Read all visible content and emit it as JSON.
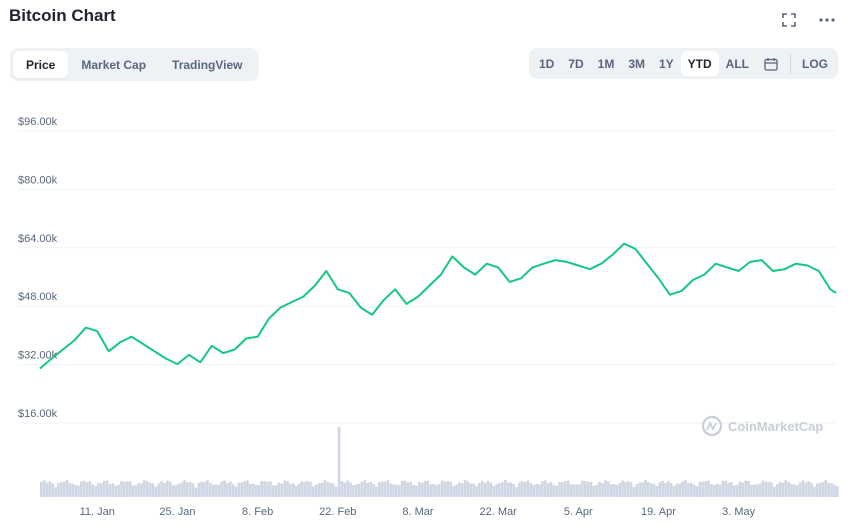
{
  "header": {
    "title": "Bitcoin Chart"
  },
  "tabs": [
    {
      "label": "Price",
      "active": true
    },
    {
      "label": "Market Cap",
      "active": false
    },
    {
      "label": "TradingView",
      "active": false
    }
  ],
  "ranges": [
    {
      "label": "1D",
      "active": false
    },
    {
      "label": "7D",
      "active": false
    },
    {
      "label": "1M",
      "active": false
    },
    {
      "label": "3M",
      "active": false
    },
    {
      "label": "1Y",
      "active": false
    },
    {
      "label": "YTD",
      "active": true
    },
    {
      "label": "ALL",
      "active": false
    }
  ],
  "log_label": "LOG",
  "icons": {
    "fullscreen": "fullscreen-icon",
    "more": "more-icon",
    "calendar": "calendar-icon"
  },
  "watermark": "CoinMarketCap",
  "colors": {
    "line": "#16c784",
    "volume": "#cfd6e4",
    "grid": "#eff2f5",
    "axis_text": "#58667e"
  },
  "chart_data": {
    "type": "line",
    "title": "Bitcoin Chart",
    "xlabel": "",
    "ylabel": "",
    "y_ticks": [
      "$96.00k",
      "$80.00k",
      "$64.00k",
      "$48.00k",
      "$32.00k",
      "$16.00k"
    ],
    "y_tick_values": [
      96000,
      80000,
      64000,
      48000,
      32000,
      16000
    ],
    "ylim": [
      16000,
      96000
    ],
    "x_ticks": [
      "11. Jan",
      "25. Jan",
      "8. Feb",
      "22. Feb",
      "8. Mar",
      "22. Mar",
      "5. Apr",
      "19. Apr",
      "3. May"
    ],
    "x_tick_day": [
      11,
      25,
      39,
      53,
      67,
      81,
      95,
      109,
      123
    ],
    "xlim_day": [
      1,
      140
    ],
    "grid": true,
    "series": [
      {
        "values_day": [
          1,
          3,
          5,
          7,
          9,
          11,
          13,
          15,
          17,
          19,
          21,
          23,
          25,
          27,
          29,
          31,
          33,
          35,
          37,
          39,
          41,
          43,
          45,
          47,
          49,
          51,
          53,
          55,
          57,
          59,
          61,
          63,
          65,
          67,
          69,
          71,
          73,
          75,
          77,
          79,
          81,
          83,
          85,
          87,
          89,
          91,
          93,
          95,
          97,
          99,
          101,
          103,
          105,
          107,
          109,
          111,
          113,
          115,
          117,
          119,
          121,
          123,
          125,
          127,
          129,
          131,
          133,
          135,
          137,
          139,
          140
        ],
        "values": [
          29300,
          32000,
          34500,
          37000,
          40500,
          39500,
          34000,
          36500,
          38000,
          36000,
          34000,
          32000,
          30500,
          33000,
          31000,
          35500,
          33500,
          34500,
          37500,
          38000,
          43000,
          46000,
          47500,
          49000,
          52000,
          56000,
          51000,
          50000,
          46000,
          44000,
          48000,
          51000,
          47000,
          49000,
          52000,
          55000,
          60000,
          57000,
          55000,
          58000,
          57000,
          53000,
          54000,
          57000,
          58000,
          59000,
          58500,
          57500,
          56500,
          58000,
          60500,
          63500,
          62000,
          58000,
          54000,
          49500,
          50500,
          53500,
          55000,
          58000,
          57000,
          56000,
          58500,
          59000,
          56000,
          56500,
          58000,
          57500,
          56000,
          51000,
          50000
        ]
      }
    ],
    "volume": {
      "type": "bar",
      "values_day_range": [
        1,
        140
      ],
      "spike_day": 53
    }
  }
}
